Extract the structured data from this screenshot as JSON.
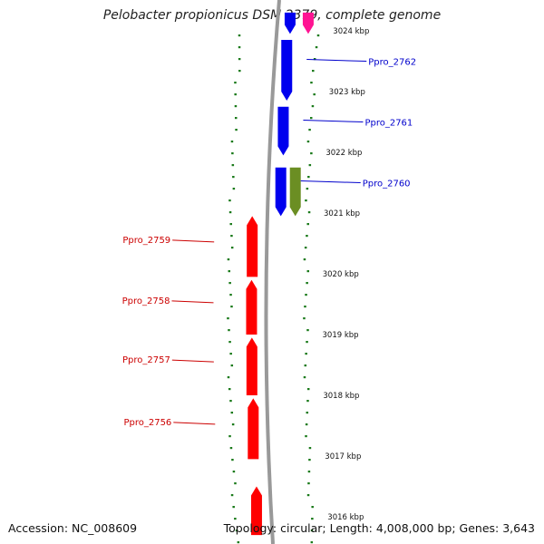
{
  "title": "Pelobacter propionicus DSM 2379, complete genome",
  "footer": {
    "accession": "Accession: NC_008609",
    "summary": "Topology: circular; Length: 4,008,000 bp; Genes: 3,643"
  },
  "ticks": [
    {
      "label": "3024 kbp"
    },
    {
      "label": "3023 kbp"
    },
    {
      "label": "3022 kbp"
    },
    {
      "label": "3021 kbp"
    },
    {
      "label": "3020 kbp"
    },
    {
      "label": "3019 kbp"
    },
    {
      "label": "3018 kbp"
    },
    {
      "label": "3017 kbp"
    },
    {
      "label": "3016 kbp"
    }
  ],
  "genes": [
    {
      "label": "Ppro_2762",
      "strand": "forward",
      "color": "#0000ee",
      "start_kbp": 3022.85,
      "end_kbp": 3023.85
    },
    {
      "label": "Ppro_2761",
      "strand": "forward",
      "color": "#0000ee",
      "start_kbp": 3021.95,
      "end_kbp": 3022.75
    },
    {
      "label": "Ppro_2760",
      "strand": "forward",
      "color": "#0000ee",
      "start_kbp": 3020.95,
      "end_kbp": 3021.75
    },
    {
      "label": "Ppro_2759",
      "strand": "reverse",
      "color": "#ff0000",
      "start_kbp": 3019.95,
      "end_kbp": 3020.95
    },
    {
      "label": "Ppro_2758",
      "strand": "reverse",
      "color": "#ff0000",
      "start_kbp": 3019.0,
      "end_kbp": 3019.9
    },
    {
      "label": "Ppro_2757",
      "strand": "reverse",
      "color": "#ff0000",
      "start_kbp": 3018.0,
      "end_kbp": 3018.95
    },
    {
      "label": "Ppro_2756",
      "strand": "reverse",
      "color": "#ff0000",
      "start_kbp": 3016.95,
      "end_kbp": 3017.95
    }
  ],
  "extra_features": [
    {
      "name": "unlabeled-cds",
      "strand": "forward",
      "color": "#0000ee",
      "start_kbp": 3023.95,
      "end_kbp": 3024.3
    },
    {
      "name": "unlabeled-magenta-feature",
      "strand": "forward",
      "color": "#ff1493",
      "start_kbp": 3023.95,
      "end_kbp": 3024.3
    },
    {
      "name": "unlabeled-olive-feature",
      "strand": "forward",
      "color": "#6b8e23",
      "start_kbp": 3020.95,
      "end_kbp": 3021.75
    },
    {
      "name": "unlabeled-cds",
      "strand": "reverse",
      "color": "#ff0000",
      "start_kbp": 3015.7,
      "end_kbp": 3016.5
    }
  ],
  "colors": {
    "backbone": "#999999",
    "tick_dots": "#1a7a1a",
    "forward_label": "#0000cc",
    "reverse_label": "#cc0000"
  }
}
